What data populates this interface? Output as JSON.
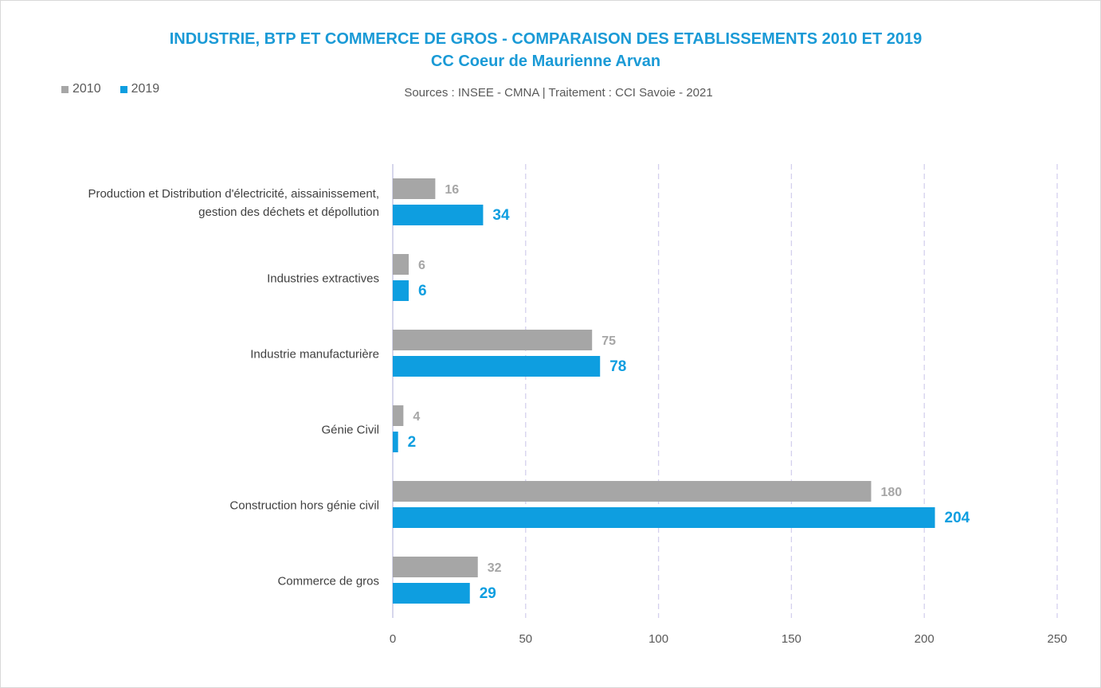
{
  "chart_data": {
    "type": "bar",
    "orientation": "horizontal",
    "title": "INDUSTRIE, BTP ET COMMERCE DE GROS - COMPARAISON DES ETABLISSEMENTS 2010 ET 2019",
    "subtitle": "CC Coeur de Maurienne Arvan",
    "source": "Sources : INSEE - CMNA  |  Traitement : CCI Savoie - 2021",
    "categories": [
      [
        "Production et Distribution d'électricité, aissainissement,",
        "gestion des déchets et dépollution"
      ],
      [
        "Industries extractives"
      ],
      [
        "Industrie manufacturière"
      ],
      [
        "Génie Civil"
      ],
      [
        "Construction hors génie civil"
      ],
      [
        "Commerce de gros"
      ]
    ],
    "series": [
      {
        "name": "2010",
        "color": "#a6a6a6",
        "values": [
          16,
          6,
          75,
          4,
          180,
          32
        ]
      },
      {
        "name": "2019",
        "color": "#0e9ee0",
        "values": [
          34,
          6,
          78,
          2,
          204,
          29
        ]
      }
    ],
    "xlim": [
      0,
      250
    ],
    "xticks": [
      "0",
      "50",
      "100",
      "150",
      "200",
      "250"
    ],
    "grid": true,
    "legend_position": "top-left"
  }
}
